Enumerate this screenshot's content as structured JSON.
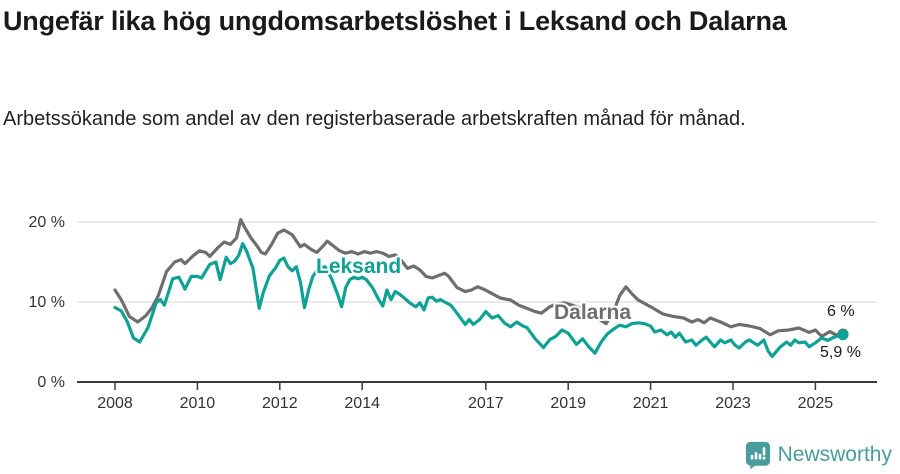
{
  "header": {
    "title": "Ungefär lika hög ungdomsarbetslöshet i Leksand och Dalarna",
    "subtitle": "Arbetssökande som andel av den registerbaserade arbetskraften månad för månad."
  },
  "footer": {
    "brand": "Newsworthy",
    "logo_icon": "newsworthy-speech-bubble-bar-chart-icon"
  },
  "colors": {
    "leksand": "#10A195",
    "dalarna": "#6E6E6E",
    "grid": "#DDDDDD",
    "axis": "#3A3A3A",
    "tick_text": "#333333",
    "end_label_text": "#1A1A1A",
    "logo": "#4A9B9D",
    "background": "#FFFFFF"
  },
  "chart_data": {
    "type": "line",
    "unit": "%",
    "x_ticks": [
      "2008",
      "2010",
      "2012",
      "2014",
      "2017",
      "2019",
      "2021",
      "2023",
      "2025"
    ],
    "y_ticks": [
      {
        "value": 0,
        "label": "0 %"
      },
      {
        "value": 10,
        "label": "10 %"
      },
      {
        "value": 20,
        "label": "20 %"
      }
    ],
    "ylim": [
      0,
      22
    ],
    "xlim": [
      2007.1,
      2026.5
    ],
    "grid": "horizontal-only",
    "legend_position": "inline-labels",
    "series": [
      {
        "name": "Dalarna",
        "color": "#6E6E6E",
        "end_label": "6 %",
        "end_value": 6.0,
        "points": [
          [
            2008.0,
            11.5
          ],
          [
            2008.15,
            10.3
          ],
          [
            2008.35,
            8.2
          ],
          [
            2008.55,
            7.5
          ],
          [
            2008.75,
            8.3
          ],
          [
            2008.9,
            9.3
          ],
          [
            2009.05,
            10.8
          ],
          [
            2009.25,
            13.8
          ],
          [
            2009.45,
            15.0
          ],
          [
            2009.6,
            15.3
          ],
          [
            2009.7,
            14.8
          ],
          [
            2009.9,
            15.8
          ],
          [
            2010.05,
            16.4
          ],
          [
            2010.2,
            16.2
          ],
          [
            2010.3,
            15.7
          ],
          [
            2010.5,
            16.8
          ],
          [
            2010.65,
            17.5
          ],
          [
            2010.8,
            17.2
          ],
          [
            2010.95,
            18.0
          ],
          [
            2011.05,
            20.3
          ],
          [
            2011.15,
            19.3
          ],
          [
            2011.3,
            18.0
          ],
          [
            2011.45,
            17.0
          ],
          [
            2011.55,
            16.2
          ],
          [
            2011.65,
            16.0
          ],
          [
            2011.8,
            17.2
          ],
          [
            2011.95,
            18.6
          ],
          [
            2012.1,
            19.0
          ],
          [
            2012.3,
            18.4
          ],
          [
            2012.5,
            16.9
          ],
          [
            2012.6,
            17.2
          ],
          [
            2012.75,
            16.6
          ],
          [
            2012.9,
            16.2
          ],
          [
            2013.05,
            17.0
          ],
          [
            2013.15,
            17.6
          ],
          [
            2013.3,
            17.0
          ],
          [
            2013.45,
            16.4
          ],
          [
            2013.6,
            16.1
          ],
          [
            2013.75,
            16.3
          ],
          [
            2013.9,
            16.0
          ],
          [
            2014.05,
            16.3
          ],
          [
            2014.2,
            16.1
          ],
          [
            2014.35,
            16.3
          ],
          [
            2014.5,
            16.1
          ],
          [
            2014.65,
            15.7
          ],
          [
            2014.8,
            15.9
          ],
          [
            2014.95,
            15.2
          ],
          [
            2015.1,
            14.2
          ],
          [
            2015.25,
            14.5
          ],
          [
            2015.4,
            14.0
          ],
          [
            2015.55,
            13.2
          ],
          [
            2015.7,
            13.0
          ],
          [
            2015.85,
            13.3
          ],
          [
            2016.0,
            13.6
          ],
          [
            2016.1,
            13.2
          ],
          [
            2016.3,
            11.8
          ],
          [
            2016.5,
            11.3
          ],
          [
            2016.65,
            11.5
          ],
          [
            2016.8,
            11.9
          ],
          [
            2016.95,
            11.6
          ],
          [
            2017.1,
            11.2
          ],
          [
            2017.35,
            10.5
          ],
          [
            2017.6,
            10.25
          ],
          [
            2017.8,
            9.6
          ],
          [
            2018.0,
            9.2
          ],
          [
            2018.2,
            8.8
          ],
          [
            2018.35,
            8.6
          ],
          [
            2018.55,
            9.4
          ],
          [
            2018.7,
            9.7
          ],
          [
            2018.9,
            9.9
          ],
          [
            2019.1,
            9.6
          ],
          [
            2019.3,
            9.2
          ],
          [
            2019.5,
            8.6
          ],
          [
            2019.7,
            8.0
          ],
          [
            2019.92,
            7.3
          ],
          [
            2020.1,
            8.8
          ],
          [
            2020.25,
            10.8
          ],
          [
            2020.4,
            11.9
          ],
          [
            2020.55,
            11.0
          ],
          [
            2020.7,
            10.25
          ],
          [
            2021.0,
            9.4
          ],
          [
            2021.3,
            8.5
          ],
          [
            2021.55,
            8.2
          ],
          [
            2021.8,
            8.0
          ],
          [
            2022.0,
            7.5
          ],
          [
            2022.15,
            7.8
          ],
          [
            2022.3,
            7.4
          ],
          [
            2022.45,
            8.0
          ],
          [
            2022.7,
            7.5
          ],
          [
            2022.95,
            6.9
          ],
          [
            2023.15,
            7.2
          ],
          [
            2023.4,
            7.0
          ],
          [
            2023.65,
            6.7
          ],
          [
            2023.9,
            5.9
          ],
          [
            2024.1,
            6.4
          ],
          [
            2024.35,
            6.5
          ],
          [
            2024.6,
            6.75
          ],
          [
            2024.85,
            6.2
          ],
          [
            2025.0,
            6.5
          ],
          [
            2025.15,
            5.7
          ],
          [
            2025.35,
            6.3
          ],
          [
            2025.5,
            5.9
          ],
          [
            2025.67,
            6.0
          ]
        ]
      },
      {
        "name": "Leksand",
        "color": "#10A195",
        "end_label": "5,9 %",
        "end_value": 5.9,
        "points": [
          [
            2008.0,
            9.3
          ],
          [
            2008.15,
            8.9
          ],
          [
            2008.3,
            7.5
          ],
          [
            2008.45,
            5.5
          ],
          [
            2008.6,
            5.0
          ],
          [
            2008.8,
            6.8
          ],
          [
            2009.0,
            9.9
          ],
          [
            2009.1,
            10.3
          ],
          [
            2009.2,
            9.6
          ],
          [
            2009.4,
            12.9
          ],
          [
            2009.55,
            13.1
          ],
          [
            2009.7,
            11.6
          ],
          [
            2009.85,
            13.2
          ],
          [
            2010.0,
            13.2
          ],
          [
            2010.1,
            13.0
          ],
          [
            2010.3,
            14.7
          ],
          [
            2010.45,
            15.0
          ],
          [
            2010.55,
            12.8
          ],
          [
            2010.7,
            15.6
          ],
          [
            2010.8,
            14.8
          ],
          [
            2010.9,
            15.1
          ],
          [
            2011.0,
            15.8
          ],
          [
            2011.1,
            17.3
          ],
          [
            2011.2,
            16.3
          ],
          [
            2011.35,
            14.2
          ],
          [
            2011.5,
            9.2
          ],
          [
            2011.6,
            11.2
          ],
          [
            2011.75,
            13.3
          ],
          [
            2011.9,
            14.3
          ],
          [
            2012.0,
            15.2
          ],
          [
            2012.1,
            15.5
          ],
          [
            2012.2,
            14.4
          ],
          [
            2012.3,
            13.9
          ],
          [
            2012.4,
            14.4
          ],
          [
            2012.5,
            12.5
          ],
          [
            2012.6,
            9.3
          ],
          [
            2012.7,
            11.5
          ],
          [
            2012.8,
            13.2
          ],
          [
            2012.9,
            13.9
          ],
          [
            2013.0,
            14.3
          ],
          [
            2013.1,
            14.4
          ],
          [
            2013.25,
            13.0
          ],
          [
            2013.4,
            11.0
          ],
          [
            2013.5,
            9.4
          ],
          [
            2013.6,
            11.8
          ],
          [
            2013.7,
            12.8
          ],
          [
            2013.8,
            13.1
          ],
          [
            2013.9,
            12.9
          ],
          [
            2014.0,
            13.1
          ],
          [
            2014.1,
            12.8
          ],
          [
            2014.25,
            11.8
          ],
          [
            2014.4,
            10.3
          ],
          [
            2014.5,
            9.5
          ],
          [
            2014.6,
            11.5
          ],
          [
            2014.7,
            10.3
          ],
          [
            2014.8,
            11.3
          ],
          [
            2014.9,
            11.0
          ],
          [
            2015.0,
            10.6
          ],
          [
            2015.15,
            9.9
          ],
          [
            2015.3,
            9.4
          ],
          [
            2015.4,
            9.9
          ],
          [
            2015.5,
            9.0
          ],
          [
            2015.6,
            10.5
          ],
          [
            2015.7,
            10.6
          ],
          [
            2015.8,
            10.1
          ],
          [
            2015.9,
            10.3
          ],
          [
            2016.0,
            10.0
          ],
          [
            2016.15,
            9.6
          ],
          [
            2016.3,
            8.6
          ],
          [
            2016.5,
            7.2
          ],
          [
            2016.6,
            7.8
          ],
          [
            2016.7,
            7.2
          ],
          [
            2016.85,
            7.8
          ],
          [
            2017.0,
            8.8
          ],
          [
            2017.15,
            8.0
          ],
          [
            2017.3,
            8.3
          ],
          [
            2017.45,
            7.4
          ],
          [
            2017.6,
            6.9
          ],
          [
            2017.75,
            7.5
          ],
          [
            2017.9,
            7.0
          ],
          [
            2018.0,
            6.8
          ],
          [
            2018.2,
            5.4
          ],
          [
            2018.4,
            4.3
          ],
          [
            2018.55,
            5.3
          ],
          [
            2018.7,
            5.7
          ],
          [
            2018.85,
            6.5
          ],
          [
            2019.0,
            6.1
          ],
          [
            2019.2,
            4.7
          ],
          [
            2019.35,
            5.4
          ],
          [
            2019.5,
            4.4
          ],
          [
            2019.65,
            3.6
          ],
          [
            2019.8,
            5.0
          ],
          [
            2019.95,
            6.0
          ],
          [
            2020.1,
            6.6
          ],
          [
            2020.25,
            7.1
          ],
          [
            2020.4,
            6.9
          ],
          [
            2020.55,
            7.3
          ],
          [
            2020.7,
            7.4
          ],
          [
            2020.85,
            7.3
          ],
          [
            2021.0,
            7.0
          ],
          [
            2021.1,
            6.25
          ],
          [
            2021.25,
            6.5
          ],
          [
            2021.4,
            5.9
          ],
          [
            2021.5,
            6.25
          ],
          [
            2021.6,
            5.6
          ],
          [
            2021.7,
            6.1
          ],
          [
            2021.85,
            5.0
          ],
          [
            2022.0,
            5.25
          ],
          [
            2022.1,
            4.6
          ],
          [
            2022.25,
            5.25
          ],
          [
            2022.35,
            5.6
          ],
          [
            2022.45,
            5.0
          ],
          [
            2022.55,
            4.4
          ],
          [
            2022.7,
            5.25
          ],
          [
            2022.8,
            4.9
          ],
          [
            2022.95,
            5.25
          ],
          [
            2023.05,
            4.6
          ],
          [
            2023.15,
            4.25
          ],
          [
            2023.3,
            5.0
          ],
          [
            2023.4,
            5.25
          ],
          [
            2023.5,
            4.9
          ],
          [
            2023.6,
            4.6
          ],
          [
            2023.75,
            5.25
          ],
          [
            2023.85,
            3.9
          ],
          [
            2023.95,
            3.2
          ],
          [
            2024.15,
            4.4
          ],
          [
            2024.3,
            5.0
          ],
          [
            2024.4,
            4.6
          ],
          [
            2024.5,
            5.25
          ],
          [
            2024.6,
            4.9
          ],
          [
            2024.75,
            5.0
          ],
          [
            2024.85,
            4.4
          ],
          [
            2025.0,
            4.9
          ],
          [
            2025.15,
            5.5
          ],
          [
            2025.3,
            5.2
          ],
          [
            2025.45,
            5.6
          ],
          [
            2025.67,
            5.9
          ]
        ]
      }
    ]
  }
}
